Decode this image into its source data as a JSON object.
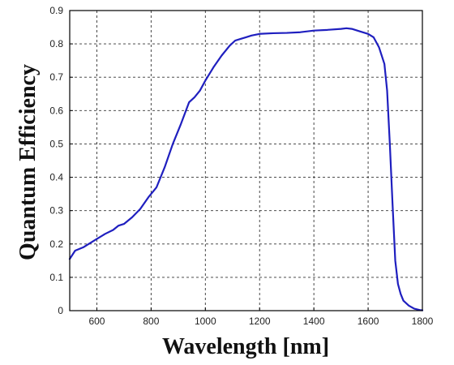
{
  "chart_data": {
    "type": "line",
    "xlabel": "Wavelength [nm]",
    "ylabel": "Quantum Efficiency",
    "xlim": [
      500,
      1800
    ],
    "ylim": [
      0,
      0.9
    ],
    "xticks": [
      600,
      800,
      1000,
      1200,
      1400,
      1600,
      1800
    ],
    "yticks": [
      0,
      0.1,
      0.2,
      0.3,
      0.4,
      0.5,
      0.6,
      0.7,
      0.8,
      0.9
    ],
    "grid": true,
    "colors": {
      "series": "#1f1fbf",
      "grid": "#333333",
      "axis": "#000000"
    },
    "series": [
      {
        "x": [
          500,
          520,
          550,
          580,
          600,
          630,
          660,
          680,
          700,
          730,
          760,
          790,
          820,
          850,
          880,
          910,
          940,
          960,
          980,
          1000,
          1030,
          1060,
          1090,
          1110,
          1130,
          1150,
          1170,
          1200,
          1250,
          1300,
          1350,
          1400,
          1450,
          1500,
          1520,
          1540,
          1560,
          1600,
          1620,
          1640,
          1660,
          1670,
          1680,
          1690,
          1700,
          1710,
          1720,
          1730,
          1750,
          1770,
          1790,
          1800
        ],
        "y": [
          0.155,
          0.18,
          0.19,
          0.205,
          0.215,
          0.23,
          0.242,
          0.255,
          0.26,
          0.28,
          0.305,
          0.34,
          0.37,
          0.43,
          0.5,
          0.56,
          0.625,
          0.64,
          0.66,
          0.69,
          0.73,
          0.765,
          0.795,
          0.81,
          0.815,
          0.82,
          0.825,
          0.83,
          0.832,
          0.833,
          0.835,
          0.84,
          0.842,
          0.845,
          0.847,
          0.845,
          0.84,
          0.83,
          0.82,
          0.79,
          0.74,
          0.66,
          0.5,
          0.32,
          0.15,
          0.08,
          0.05,
          0.03,
          0.015,
          0.006,
          0.002,
          0.001
        ]
      }
    ]
  }
}
